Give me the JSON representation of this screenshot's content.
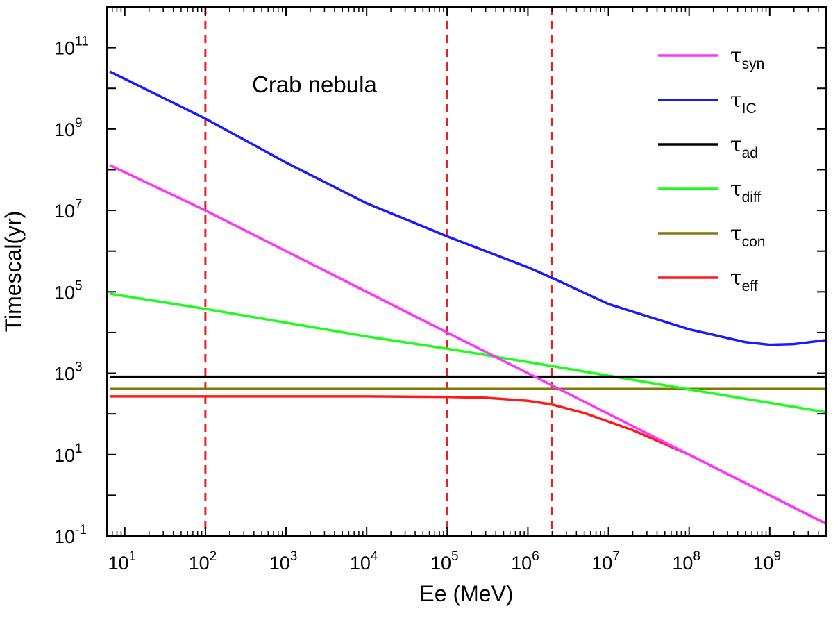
{
  "chart_data": {
    "type": "line",
    "title": "",
    "annotation": "Crab nebula",
    "xlabel": "Ee (MeV)",
    "ylabel": "Timescal(yr)",
    "xscale": "log",
    "yscale": "log",
    "xlim": [
      6,
      5000000000
    ],
    "ylim": [
      0.1,
      1000000000000
    ],
    "grid": false,
    "legend_position": "top-right",
    "x_ticks": [
      {
        "base": "10",
        "exp": "1",
        "value": 10
      },
      {
        "base": "10",
        "exp": "2",
        "value": 100
      },
      {
        "base": "10",
        "exp": "3",
        "value": 1000
      },
      {
        "base": "10",
        "exp": "4",
        "value": 10000
      },
      {
        "base": "10",
        "exp": "5",
        "value": 100000
      },
      {
        "base": "10",
        "exp": "6",
        "value": 1000000
      },
      {
        "base": "10",
        "exp": "7",
        "value": 10000000
      },
      {
        "base": "10",
        "exp": "8",
        "value": 100000000
      },
      {
        "base": "10",
        "exp": "9",
        "value": 1000000000
      }
    ],
    "y_ticks": [
      {
        "base": "10",
        "exp": "-1",
        "value": 0.1
      },
      {
        "base": "10",
        "exp": "1",
        "value": 10
      },
      {
        "base": "10",
        "exp": "3",
        "value": 1000
      },
      {
        "base": "10",
        "exp": "5",
        "value": 100000
      },
      {
        "base": "10",
        "exp": "7",
        "value": 10000000
      },
      {
        "base": "10",
        "exp": "9",
        "value": 1000000000
      },
      {
        "base": "10",
        "exp": "11",
        "value": 100000000000
      }
    ],
    "vertical_lines": [
      {
        "x": 100,
        "color": "#e82020"
      },
      {
        "x": 100000,
        "color": "#e82020"
      },
      {
        "x": 2000000,
        "color": "#e82020"
      }
    ],
    "series": [
      {
        "symbol": "τ",
        "sub": "syn",
        "color": "#ff33ff",
        "x": [
          6.5,
          100,
          100000,
          2000000,
          100000000,
          5000000000
        ],
        "y": [
          130000000,
          10000000,
          10000,
          500,
          10,
          0.2
        ]
      },
      {
        "symbol": "τ",
        "sub": "IC",
        "color": "#1a1aff",
        "x": [
          6.5,
          100,
          1000,
          10000,
          100000,
          1000000,
          2000000,
          10000000,
          100000000,
          500000000,
          1000000000,
          2000000000,
          5000000000
        ],
        "y": [
          26000000000,
          1800000000,
          150000000,
          15000000,
          2300000,
          400000,
          220000,
          50000,
          12000,
          5800,
          5000,
          5200,
          6500
        ]
      },
      {
        "symbol": "τ",
        "sub": "ad",
        "color": "#000000",
        "x": [
          6.5,
          5000000000
        ],
        "y": [
          820,
          820
        ]
      },
      {
        "symbol": "τ",
        "sub": "diff",
        "color": "#1aff1a",
        "x": [
          6.5,
          100,
          10000,
          100000,
          2000000,
          100000000,
          5000000000
        ],
        "y": [
          90000,
          38000,
          8000,
          4000,
          1500,
          400,
          110
        ]
      },
      {
        "symbol": "τ",
        "sub": "con",
        "color": "#807a00",
        "x": [
          6.5,
          5000000000
        ],
        "y": [
          410,
          410
        ]
      },
      {
        "symbol": "τ",
        "sub": "eff",
        "color": "#ff1a1a",
        "x": [
          6.5,
          10000,
          100000,
          300000,
          1000000,
          2000000,
          5000000,
          20000000,
          100000000,
          1000000000,
          5000000000
        ],
        "y": [
          270,
          270,
          262,
          250,
          210,
          170,
          105,
          40,
          10,
          1,
          0.2
        ]
      }
    ]
  }
}
